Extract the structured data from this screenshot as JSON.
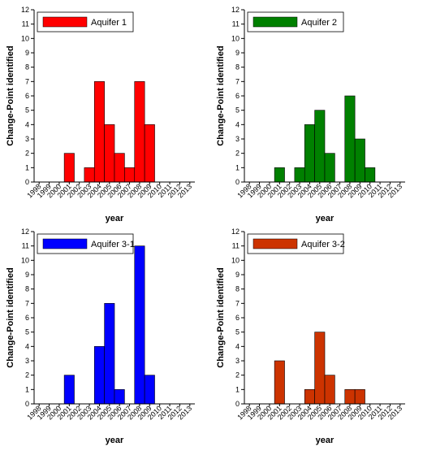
{
  "chart_data": [
    {
      "type": "bar",
      "legend": "Aquifer 1",
      "color": "#ff0000",
      "xlabel": "year",
      "ylabel": "Change-Point identified",
      "ylim": [
        0,
        12
      ],
      "yticks": [
        0,
        1,
        2,
        3,
        4,
        5,
        6,
        7,
        8,
        9,
        10,
        11,
        12
      ],
      "categories": [
        "1998",
        "1999",
        "2000",
        "2001",
        "2002",
        "2003",
        "2004",
        "2005",
        "2006",
        "2007",
        "2008",
        "2009",
        "2010",
        "2011",
        "2012",
        "2013"
      ],
      "values": [
        0,
        0,
        0,
        2,
        0,
        1,
        7,
        4,
        2,
        1,
        7,
        4,
        0,
        0,
        0,
        0
      ]
    },
    {
      "type": "bar",
      "legend": "Aquifer 2",
      "color": "#008000",
      "xlabel": "year",
      "ylabel": "Change-Point identified",
      "ylim": [
        0,
        12
      ],
      "yticks": [
        0,
        1,
        2,
        3,
        4,
        5,
        6,
        7,
        8,
        9,
        10,
        11,
        12
      ],
      "categories": [
        "1998",
        "1999",
        "2000",
        "2001",
        "2002",
        "2003",
        "2004",
        "2005",
        "2006",
        "2007",
        "2008",
        "2009",
        "2010",
        "2011",
        "2012",
        "2013"
      ],
      "values": [
        0,
        0,
        0,
        1,
        0,
        1,
        4,
        5,
        2,
        0,
        6,
        3,
        1,
        0,
        0,
        0
      ]
    },
    {
      "type": "bar",
      "legend": "Aquifer 3-1",
      "color": "#0000ff",
      "xlabel": "year",
      "ylabel": "Change-Point identified",
      "ylim": [
        0,
        12
      ],
      "yticks": [
        0,
        1,
        2,
        3,
        4,
        5,
        6,
        7,
        8,
        9,
        10,
        11,
        12
      ],
      "categories": [
        "1998",
        "1999",
        "2000",
        "2001",
        "2002",
        "2003",
        "2004",
        "2005",
        "2006",
        "2007",
        "2008",
        "2009",
        "2010",
        "2011",
        "2012",
        "2013"
      ],
      "values": [
        0,
        0,
        0,
        2,
        0,
        0,
        4,
        7,
        1,
        0,
        11,
        2,
        0,
        0,
        0,
        0
      ]
    },
    {
      "type": "bar",
      "legend": "Aquifer 3-2",
      "color": "#cc3300",
      "xlabel": "year",
      "ylabel": "Change-Point identified",
      "ylim": [
        0,
        12
      ],
      "yticks": [
        0,
        1,
        2,
        3,
        4,
        5,
        6,
        7,
        8,
        9,
        10,
        11,
        12
      ],
      "categories": [
        "1998",
        "1999",
        "2000",
        "2001",
        "2002",
        "2003",
        "2004",
        "2005",
        "2006",
        "2007",
        "2008",
        "2009",
        "2010",
        "2011",
        "2012",
        "2013"
      ],
      "values": [
        0,
        0,
        0,
        3,
        0,
        0,
        1,
        5,
        2,
        0,
        1,
        1,
        0,
        0,
        0,
        0
      ]
    }
  ]
}
